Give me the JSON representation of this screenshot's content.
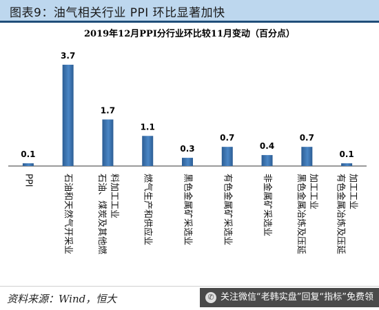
{
  "figure_header": "图表9：油气相关行业 PPI 环比显著加快",
  "chart_data": {
    "type": "bar",
    "title": "2019年12月PPI分行业环比较11月变动（百分点）",
    "categories": [
      "PPI",
      "石油和天然气开采业",
      "石油、煤炭及其他燃料加工工业",
      "燃气生产和供应业",
      "黑色金属矿采选业",
      "有色金属矿采选业",
      "非金属矿采选业",
      "黑色金属冶炼及压延加工工业",
      "有色金属冶炼及压延加工工业"
    ],
    "category_label_lines": [
      [
        "PPI"
      ],
      [
        "石油和天然气开采业"
      ],
      [
        "石油、煤炭及其他燃",
        "料加工工业"
      ],
      [
        "燃气生产和供应业"
      ],
      [
        "黑色金属矿采选业"
      ],
      [
        "有色金属矿采选业"
      ],
      [
        "非金属矿采选业"
      ],
      [
        "黑色金属冶炼及压延",
        "加工工业"
      ],
      [
        "有色金属冶炼及压延",
        "加工工业"
      ]
    ],
    "values": [
      0.1,
      3.7,
      1.7,
      1.1,
      0.3,
      0.7,
      0.4,
      0.7,
      0.1
    ],
    "data_labels": [
      "0.1",
      "3.7",
      "1.7",
      "1.1",
      "0.3",
      "0.7",
      "0.4",
      "0.7",
      "0.1"
    ],
    "ylim": [
      0,
      3.9
    ],
    "xlabel": "",
    "ylabel": "",
    "grid": false,
    "legend": "none",
    "bar_color": "#4a86c5",
    "bar_color_dark": "#2c5d94"
  },
  "footer": {
    "source": "资料来源：Wind，恒大",
    "watermark": "关注微信“老韩实盘”回复“指标”免费领"
  }
}
